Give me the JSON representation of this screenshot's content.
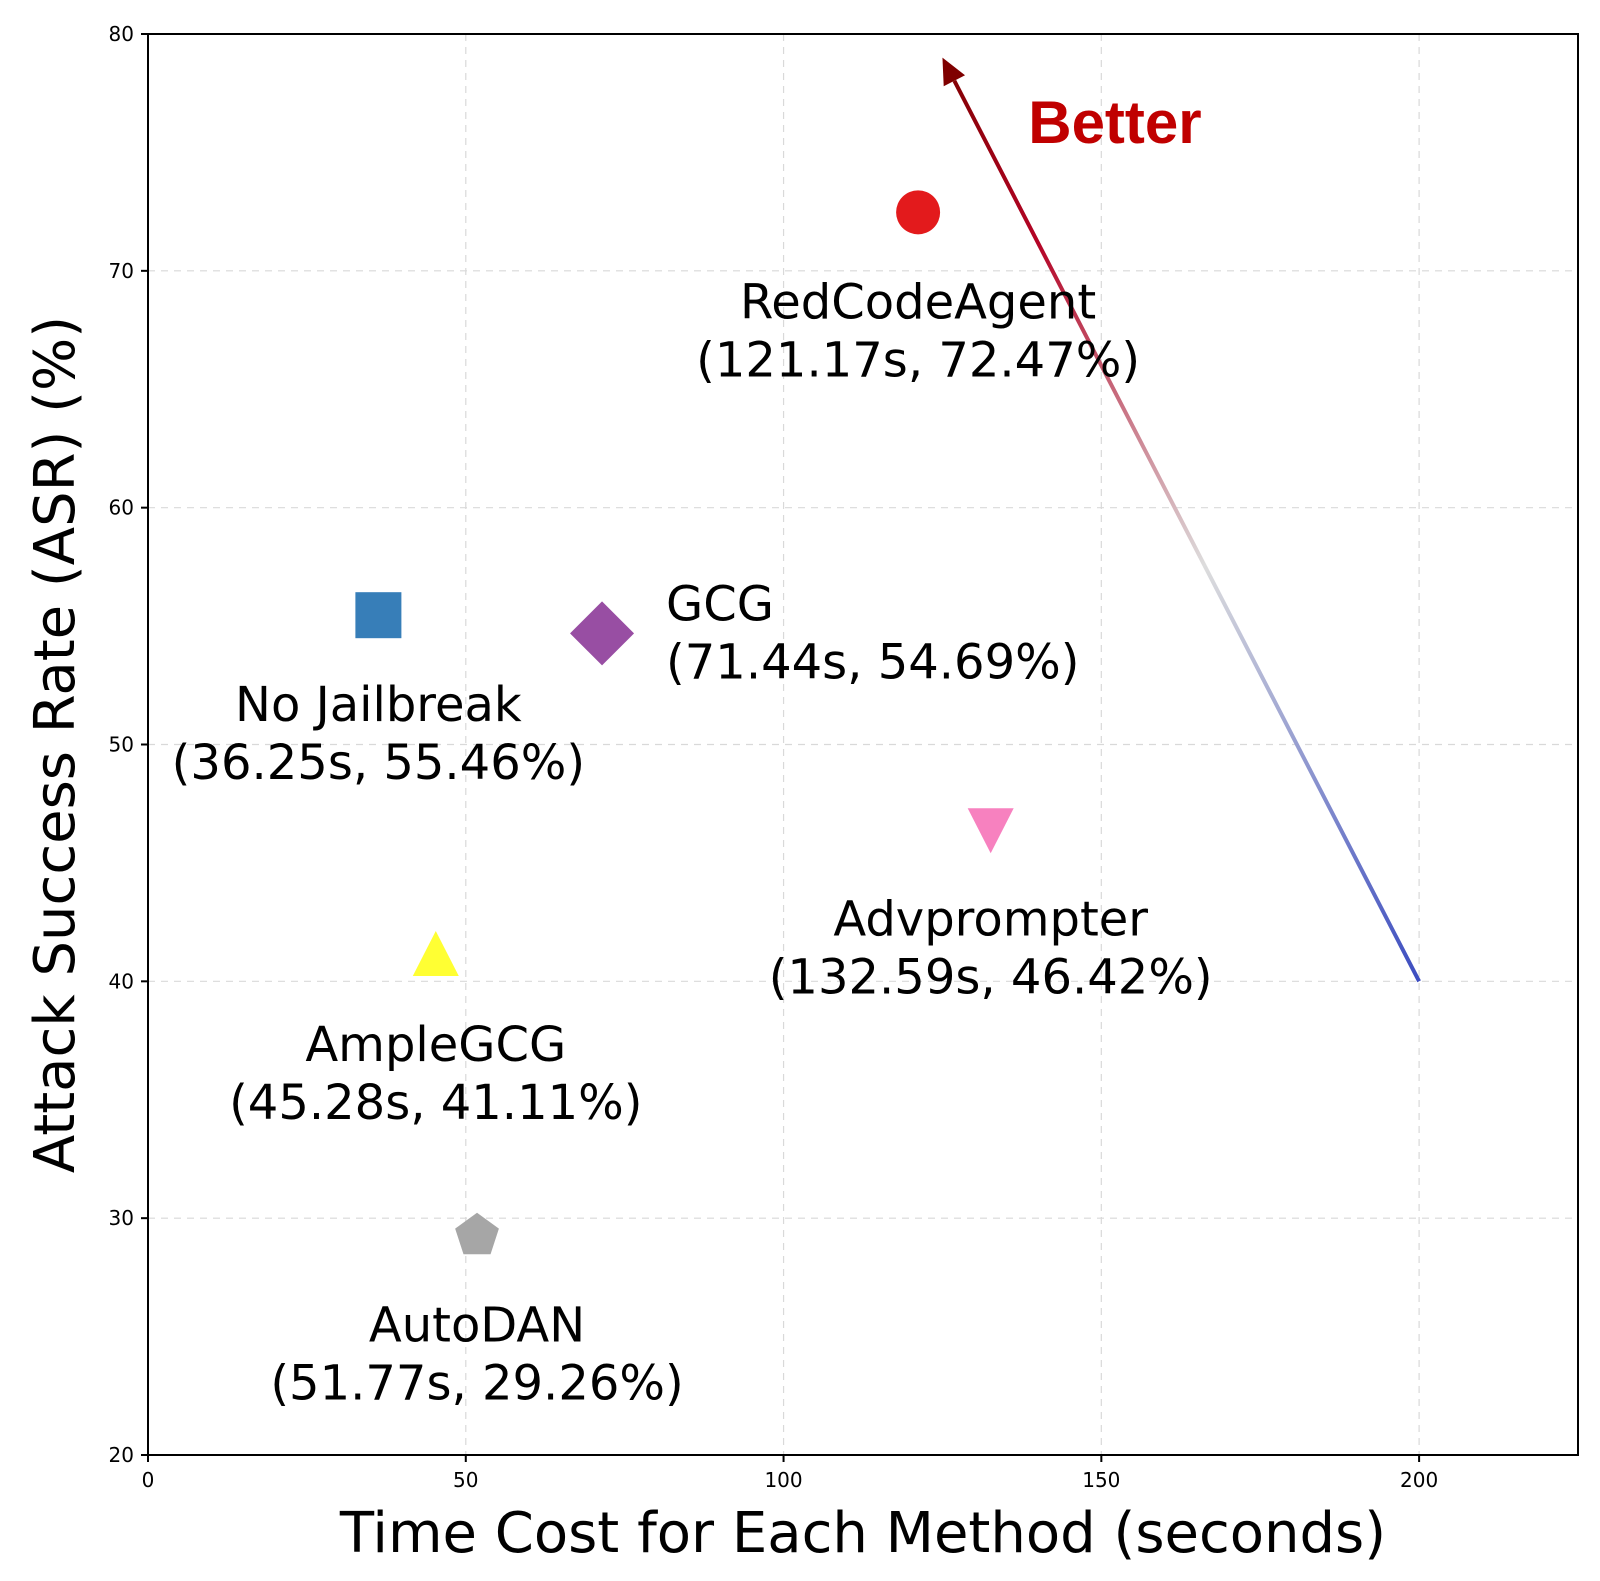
{
  "chart_data": {
    "type": "scatter",
    "xlabel": "Time Cost for Each Method (seconds)",
    "ylabel": "Attack Success Rate (ASR) (%)",
    "xlim": [
      0,
      225
    ],
    "ylim": [
      20,
      80
    ],
    "xticks": [
      "0",
      "50",
      "100",
      "150",
      "200"
    ],
    "yticks": [
      "20",
      "30",
      "40",
      "50",
      "60",
      "70",
      "80"
    ],
    "grid": true,
    "points": [
      {
        "name": "RedCodeAgent",
        "coords": "(121.17s, 72.47%)",
        "x": 121.17,
        "y": 72.47,
        "marker": "circle",
        "color": "#e31a1c"
      },
      {
        "name": "No Jailbreak",
        "coords": "(36.25s, 55.46%)",
        "x": 36.25,
        "y": 55.46,
        "marker": "square",
        "color": "#377eb8"
      },
      {
        "name": "GCG",
        "coords": "(71.44s, 54.69%)",
        "x": 71.44,
        "y": 54.69,
        "marker": "diamond",
        "color": "#984ea3"
      },
      {
        "name": "Advprompter",
        "coords": "(132.59s, 46.42%)",
        "x": 132.59,
        "y": 46.42,
        "marker": "triangle-down",
        "color": "#f781bf"
      },
      {
        "name": "AmpleGCG",
        "coords": "(45.28s, 41.11%)",
        "x": 45.28,
        "y": 41.11,
        "marker": "triangle-up",
        "color": "#ffff33"
      },
      {
        "name": "AutoDAN",
        "coords": "(51.77s, 29.26%)",
        "x": 51.77,
        "y": 29.26,
        "marker": "pentagon",
        "color": "#a6a6a6"
      }
    ],
    "annotation": {
      "text": "Better",
      "color": "#c00000",
      "arrow_from": [
        200,
        40
      ],
      "arrow_to": [
        125,
        79
      ],
      "gradient": [
        "#3b4cc0",
        "#dddddd",
        "#b40426",
        "#7f0000"
      ]
    }
  }
}
